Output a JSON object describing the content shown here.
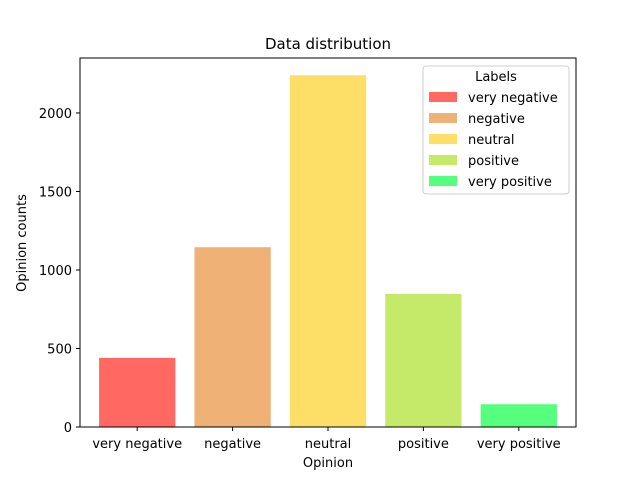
{
  "chart_data": {
    "type": "bar",
    "title": "Data distribution",
    "xlabel": "Opinion",
    "ylabel": "Opinion counts",
    "categories": [
      "very negative",
      "negative",
      "neutral",
      "positive",
      "very positive"
    ],
    "values": [
      440,
      1145,
      2240,
      848,
      145
    ],
    "colors": [
      "#ff6961",
      "#f0b176",
      "#fddf68",
      "#c5ea6a",
      "#56ff7d"
    ],
    "ylim": [
      0,
      2350
    ],
    "yticks": [
      0,
      500,
      1000,
      1500,
      2000
    ],
    "grid": false,
    "legend": {
      "title": "Labels",
      "placement": "top-right",
      "entries": [
        "very negative",
        "negative",
        "neutral",
        "positive",
        "very positive"
      ]
    }
  }
}
